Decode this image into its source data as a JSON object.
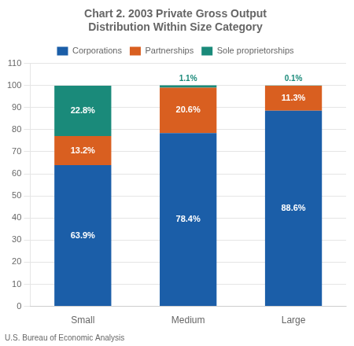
{
  "chart_data": {
    "type": "bar",
    "title": "Chart 2. 2003 Private Gross Output\nDistribution Within Size Category",
    "annotations": [
      "U.S. Bureau of Economic Analysis"
    ],
    "categories": [
      "Small",
      "Medium",
      "Large"
    ],
    "series": [
      {
        "name": "Corporations",
        "color": "#1b5ea8",
        "values": [
          63.9,
          78.4,
          88.6
        ],
        "value_labels": [
          "63.9%",
          "78.4%",
          "88.6%"
        ]
      },
      {
        "name": "Partnerships",
        "color": "#d95f20",
        "values": [
          13.2,
          20.6,
          11.3
        ],
        "value_labels": [
          "13.2%",
          "20.6%",
          "11.3%"
        ]
      },
      {
        "name": "Sole proprietorships",
        "color": "#1a8a7a",
        "values": [
          22.8,
          1.1,
          0.1
        ],
        "value_labels": [
          "22.8%",
          "1.1%",
          "0.1%"
        ]
      }
    ],
    "stacked": true,
    "data_labels": true,
    "ylim": [
      0,
      110
    ],
    "yticks": [
      0,
      10,
      20,
      30,
      40,
      50,
      60,
      70,
      80,
      90,
      100,
      110
    ],
    "grid": true,
    "legend": "top"
  }
}
